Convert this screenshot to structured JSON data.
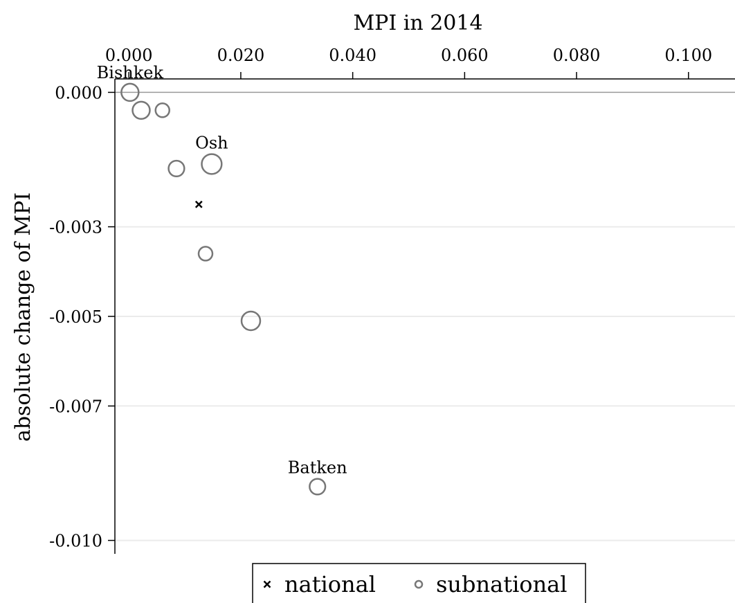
{
  "chart_data": {
    "type": "scatter",
    "title": "",
    "xlabel": "MPI in 2014",
    "ylabel": "absolute change of MPI",
    "xlim": [
      -0.0025,
      0.1025
    ],
    "ylim": [
      -0.0103,
      0.0003
    ],
    "x_ticks": [
      {
        "value": 0.0,
        "label": "0.000"
      },
      {
        "value": 0.02,
        "label": "0.020"
      },
      {
        "value": 0.04,
        "label": "0.040"
      },
      {
        "value": 0.06,
        "label": "0.060"
      },
      {
        "value": 0.08,
        "label": "0.080"
      },
      {
        "value": 0.1,
        "label": "0.100"
      }
    ],
    "y_ticks": [
      {
        "value": 0.0,
        "label": "0.000"
      },
      {
        "value": -0.003,
        "label": "-0.003"
      },
      {
        "value": -0.005,
        "label": "-0.005"
      },
      {
        "value": -0.007,
        "label": "-0.007"
      },
      {
        "value": -0.01,
        "label": "-0.010"
      }
    ],
    "x_axis_position": "top",
    "grid": "horizontal",
    "legend": {
      "placement": "bottom",
      "entries": [
        {
          "marker": "x",
          "label": "national"
        },
        {
          "marker": "circle",
          "label": "subnational"
        }
      ]
    },
    "series": [
      {
        "name": "national",
        "marker": "x",
        "color": "#000000",
        "points": [
          {
            "x": 0.0125,
            "y": -0.0025
          }
        ]
      },
      {
        "name": "subnational",
        "marker": "circle",
        "color": "#777777",
        "points": [
          {
            "x": 0.0002,
            "y": 0.0,
            "size": 2,
            "label": "Bishkek"
          },
          {
            "x": 0.0022,
            "y": -0.0004,
            "size": 2
          },
          {
            "x": 0.006,
            "y": -0.0004,
            "size": 1
          },
          {
            "x": 0.0085,
            "y": -0.0017,
            "size": 1.5
          },
          {
            "x": 0.0148,
            "y": -0.0016,
            "size": 3,
            "label": "Osh"
          },
          {
            "x": 0.0137,
            "y": -0.0036,
            "size": 1
          },
          {
            "x": 0.0218,
            "y": -0.0051,
            "size": 2.5
          },
          {
            "x": 0.0337,
            "y": -0.0088,
            "size": 1.5,
            "label": "Batken"
          }
        ]
      }
    ]
  },
  "colors": {
    "marker_stroke": "#777777",
    "grid": "#ebebeb",
    "zero_line": "#999999",
    "axis": "#000000"
  }
}
